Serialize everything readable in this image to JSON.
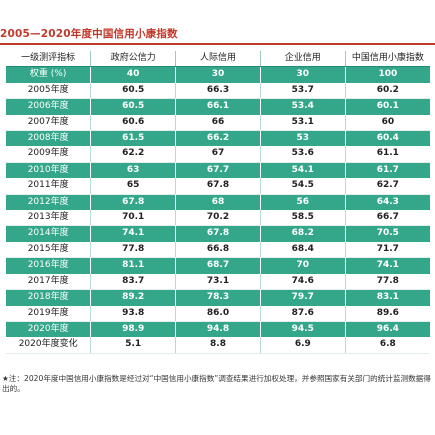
{
  "title": "2005—2020年度中国信用小康指数",
  "columns": [
    "一级测评指标",
    "政府公信力",
    "人际信用",
    "企业信用",
    "中国信用小康指数"
  ],
  "weight_row": [
    "权重 (%)",
    "40",
    "30",
    "30",
    "100"
  ],
  "rows": [
    [
      "2005年度",
      "60.5",
      "66.3",
      "53.7",
      "60.2"
    ],
    [
      "2006年度",
      "60.5",
      "66.1",
      "53.4",
      "60.1"
    ],
    [
      "2007年度",
      "60.6",
      "66",
      "53.1",
      "60"
    ],
    [
      "2008年度",
      "61.5",
      "66.2",
      "53",
      "60.4"
    ],
    [
      "2009年度",
      "62.2",
      "67",
      "53.6",
      "61.1"
    ],
    [
      "2010年度",
      "63",
      "67.7",
      "54.1",
      "61.7"
    ],
    [
      "2011年度",
      "65",
      "67.8",
      "54.5",
      "62.7"
    ],
    [
      "2012年度",
      "67.8",
      "68",
      "56",
      "64.3"
    ],
    [
      "2013年度",
      "70.1",
      "70.2",
      "58.5",
      "66.7"
    ],
    [
      "2014年度",
      "74.1",
      "67.8",
      "68.2",
      "70.5"
    ],
    [
      "2015年度",
      "77.8",
      "66.8",
      "68.4",
      "71.7"
    ],
    [
      "2016年度",
      "81.1",
      "68.7",
      "70",
      "74.1"
    ],
    [
      "2017年度",
      "83.7",
      "73.1",
      "74.6",
      "77.8"
    ],
    [
      "2018年度",
      "89.2",
      "78.3",
      "79.7",
      "83.1"
    ],
    [
      "2019年度",
      "93.8",
      "86.0",
      "87.6",
      "89.6"
    ],
    [
      "2020年度",
      "98.9",
      "94.8",
      "94.5",
      "96.4"
    ],
    [
      "2020年度变化",
      "5.1",
      "8.8",
      "6.9",
      "6.8"
    ]
  ],
  "note": "★注：2020年度中国信用小康指数是经过对“中国信用小康指数”调查结果进行加权处理，并参照国家有关部门的统计监测数据得出的。",
  "colors": {
    "accent": "#34a78a",
    "title": "#c0392b"
  }
}
